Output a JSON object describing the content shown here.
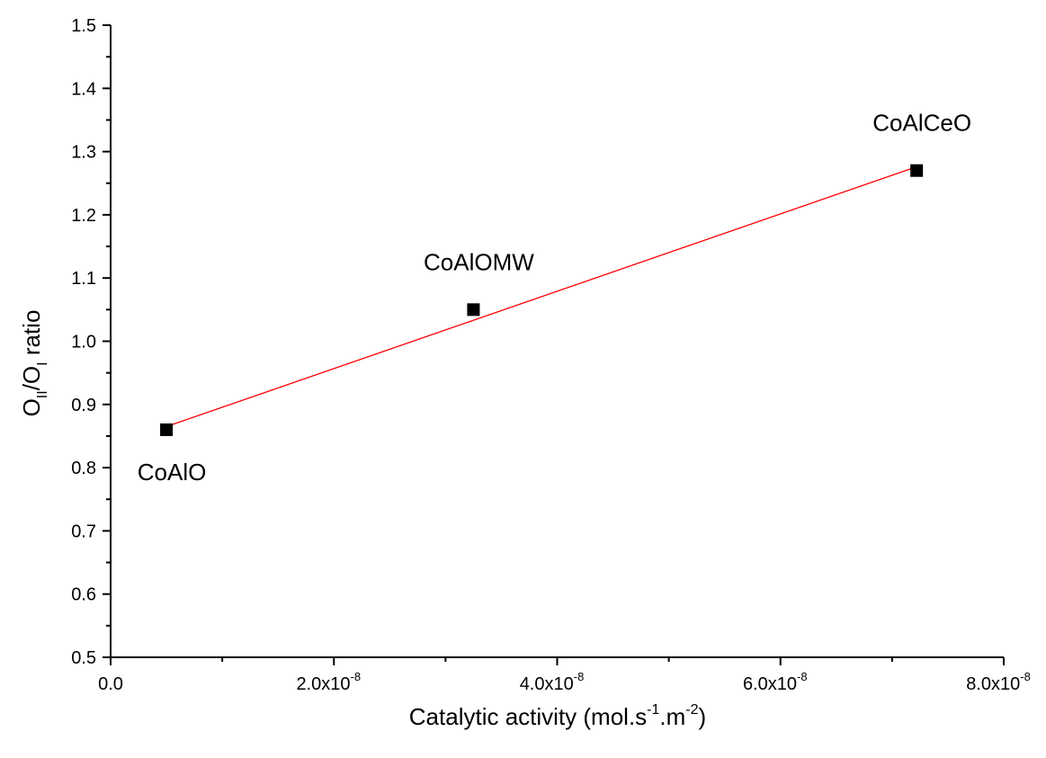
{
  "chart_data": {
    "type": "scatter",
    "title": "",
    "xlabel_parts": {
      "main": "Catalytic activity (mol.s",
      "exp1": "-1",
      "mid": ".m",
      "exp2": "-2",
      "end": ")"
    },
    "ylabel_parts": {
      "o1": "O",
      "sub1": "II",
      "slash": "/O",
      "sub2": "I",
      "rest": " ratio"
    },
    "xlim": [
      0,
      8e-08
    ],
    "ylim": [
      0.5,
      1.5
    ],
    "x_ticks": [
      {
        "value": 0,
        "mantissa": "0.0",
        "exp": ""
      },
      {
        "value": 2e-08,
        "mantissa": "2.0x10",
        "exp": "-8"
      },
      {
        "value": 4e-08,
        "mantissa": "4.0x10",
        "exp": "-8"
      },
      {
        "value": 6e-08,
        "mantissa": "6.0x10",
        "exp": "-8"
      },
      {
        "value": 8e-08,
        "mantissa": "8.0x10",
        "exp": "-8"
      }
    ],
    "x_minor_ticks": [
      1e-08,
      3e-08,
      5e-08,
      7e-08
    ],
    "y_ticks": [
      {
        "value": 0.5,
        "label": "0.5"
      },
      {
        "value": 0.6,
        "label": "0.6"
      },
      {
        "value": 0.7,
        "label": "0.7"
      },
      {
        "value": 0.8,
        "label": "0.8"
      },
      {
        "value": 0.9,
        "label": "0.9"
      },
      {
        "value": 1.0,
        "label": "1.0"
      },
      {
        "value": 1.1,
        "label": "1.1"
      },
      {
        "value": 1.2,
        "label": "1.2"
      },
      {
        "value": 1.3,
        "label": "1.3"
      },
      {
        "value": 1.4,
        "label": "1.4"
      },
      {
        "value": 1.5,
        "label": "1.5"
      }
    ],
    "y_minor_ticks": [
      0.55,
      0.65,
      0.75,
      0.85,
      0.95,
      1.05,
      1.15,
      1.25,
      1.35,
      1.45
    ],
    "points": [
      {
        "label": "CoAlO",
        "x": 5e-09,
        "y": 0.86,
        "label_pos": "below"
      },
      {
        "label": "CoAlOMW",
        "x": 3.25e-08,
        "y": 1.05,
        "label_pos": "above"
      },
      {
        "label": "CoAlCeO",
        "x": 7.22e-08,
        "y": 1.27,
        "label_pos": "above"
      }
    ],
    "fit_line": {
      "x": [
        5e-09,
        7.22e-08
      ],
      "y": [
        0.865,
        1.276
      ]
    },
    "grid": false,
    "legend": "none",
    "colors": {
      "points": "#000000",
      "fit": "#ff0000",
      "axes": "#000000"
    }
  }
}
